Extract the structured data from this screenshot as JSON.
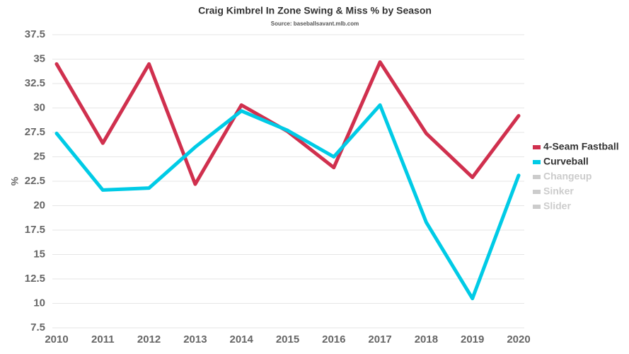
{
  "chart_data": {
    "type": "line",
    "title": "Craig Kimbrel In Zone Swing & Miss % by Season",
    "subtitle": "Source: baseballsavant.mlb.com",
    "y_label": "%",
    "categories": [
      "2010",
      "2011",
      "2012",
      "2013",
      "2014",
      "2015",
      "2016",
      "2017",
      "2018",
      "2019",
      "2020"
    ],
    "series": [
      {
        "name": "4-Seam Fastball",
        "color": "#d0304e",
        "values": [
          34.5,
          26.4,
          34.5,
          22.2,
          30.3,
          27.6,
          23.9,
          34.7,
          27.4,
          22.9,
          29.2
        ]
      },
      {
        "name": "Curveball",
        "color": "#00cbe6",
        "values": [
          27.4,
          21.6,
          21.8,
          26.0,
          29.7,
          27.7,
          25.0,
          30.3,
          18.3,
          10.5,
          23.1
        ]
      },
      {
        "name": "Changeup",
        "color": "#cccccc",
        "values": [
          null,
          null,
          null,
          null,
          null,
          null,
          null,
          null,
          null,
          null,
          null
        ]
      },
      {
        "name": "Sinker",
        "color": "#cccccc",
        "values": [
          null,
          null,
          null,
          null,
          null,
          null,
          null,
          null,
          null,
          null,
          null
        ]
      },
      {
        "name": "Slider",
        "color": "#cccccc",
        "values": [
          null,
          null,
          null,
          null,
          null,
          null,
          null,
          null,
          null,
          null,
          null
        ]
      }
    ],
    "ylim": [
      7.5,
      37.5
    ],
    "yticks": [
      7.5,
      10,
      12.5,
      15,
      17.5,
      20,
      22.5,
      25,
      27.5,
      30,
      32.5,
      35,
      37.5
    ],
    "grid": true,
    "legend": "right"
  }
}
